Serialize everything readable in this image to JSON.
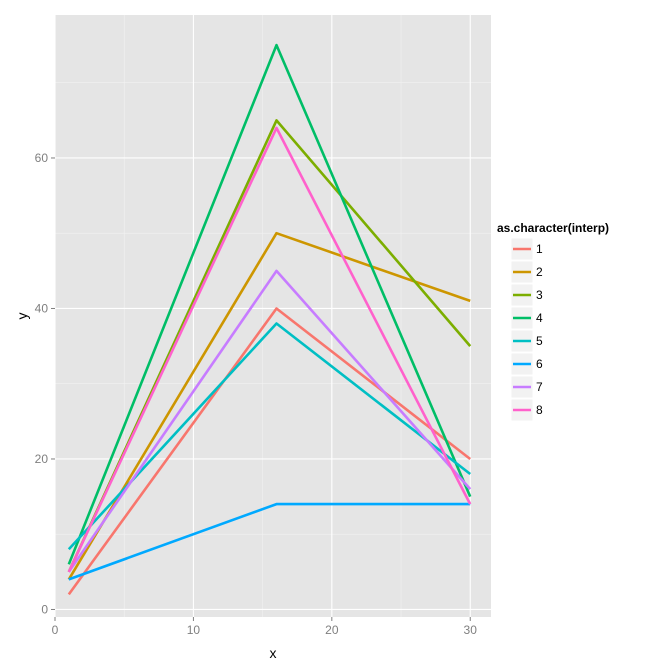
{
  "chart_data": {
    "type": "line",
    "xlabel": "x",
    "ylabel": "y",
    "xlim": [
      0,
      31.5
    ],
    "ylim": [
      -1,
      79
    ],
    "xticks": [
      0,
      10,
      20,
      30
    ],
    "yticks": [
      0,
      20,
      40,
      60
    ],
    "x": [
      1,
      16,
      30
    ],
    "grid": true,
    "legend": {
      "title": "as.character(interp)",
      "position": "right"
    },
    "series": [
      {
        "name": "1",
        "color": "#F8766D",
        "values": [
          2,
          40,
          20
        ]
      },
      {
        "name": "2",
        "color": "#CD9600",
        "values": [
          4,
          50,
          41
        ]
      },
      {
        "name": "3",
        "color": "#7CAE00",
        "values": [
          5,
          65,
          35
        ]
      },
      {
        "name": "4",
        "color": "#00BE67",
        "values": [
          6,
          75,
          15
        ]
      },
      {
        "name": "5",
        "color": "#00BFC4",
        "values": [
          8,
          38,
          18
        ]
      },
      {
        "name": "6",
        "color": "#00A9FF",
        "values": [
          4,
          14,
          14
        ]
      },
      {
        "name": "7",
        "color": "#C77CFF",
        "values": [
          5,
          45,
          16
        ]
      },
      {
        "name": "8",
        "color": "#FF61CC",
        "values": [
          5,
          64,
          14
        ]
      }
    ]
  }
}
